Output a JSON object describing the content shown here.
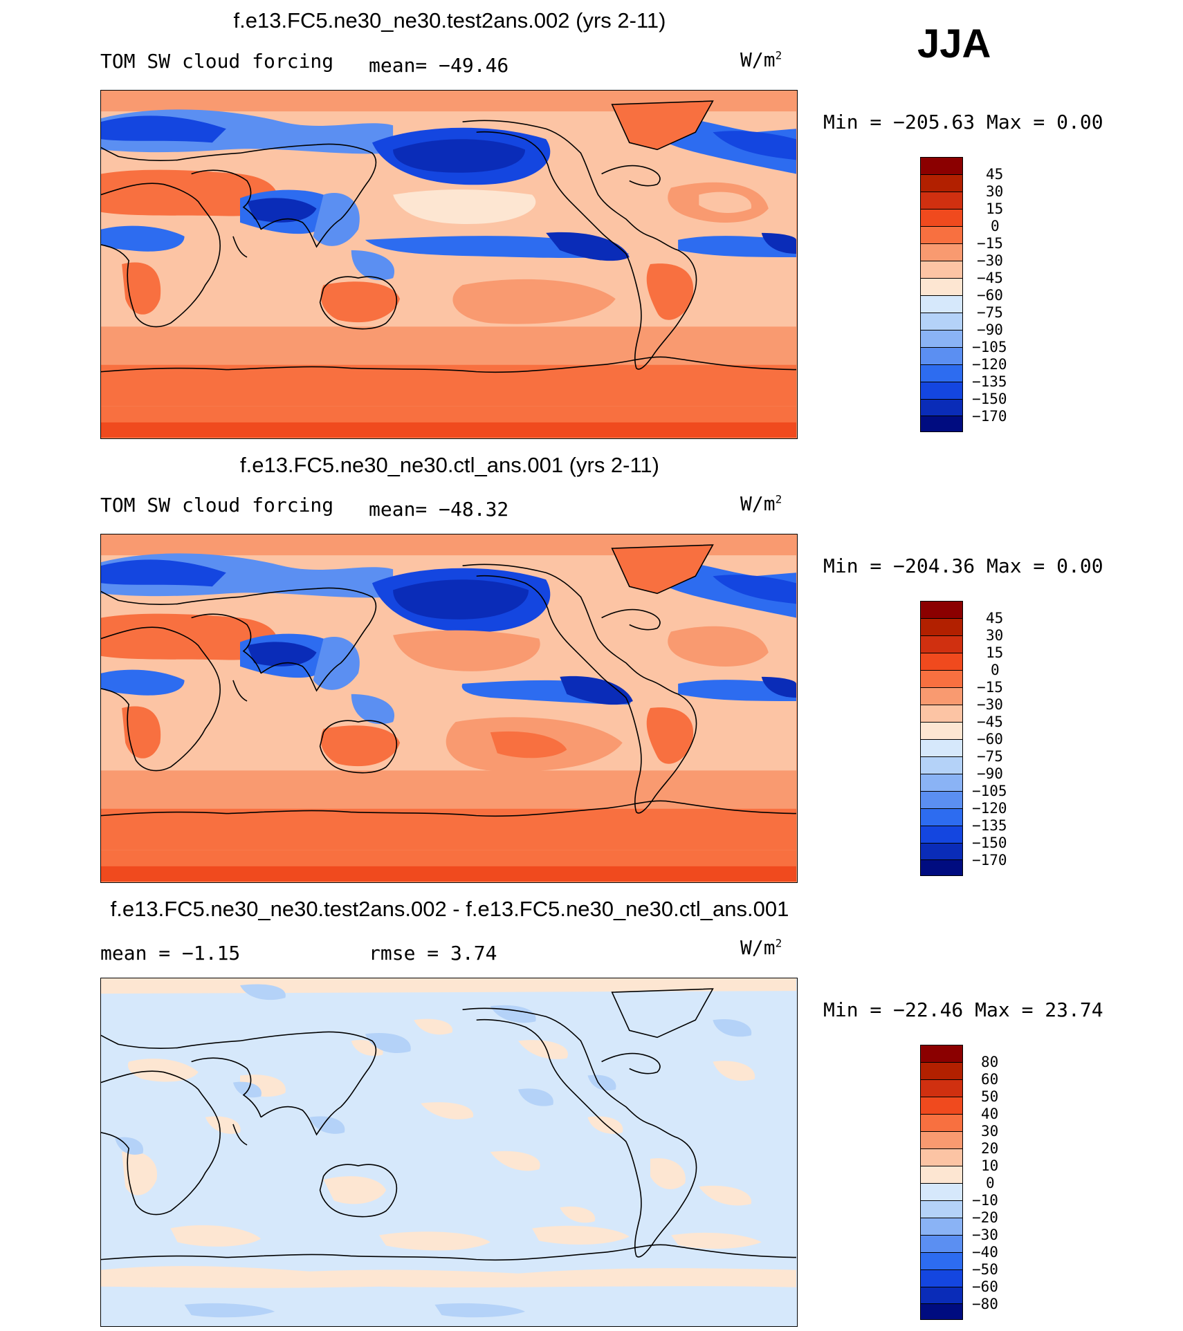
{
  "season": "JJA",
  "units": "W/m",
  "units_sup": "2",
  "panels": [
    {
      "title": "f.e13.FC5.ne30_ne30.test2ans.002 (yrs 2-11)",
      "left_label": "TOM SW cloud forcing",
      "stat": "mean= −49.46",
      "minmax": "Min = −205.63 Max =    0.00"
    },
    {
      "title": "f.e13.FC5.ne30_ne30.ctl_ans.001 (yrs 2-11)",
      "left_label": "TOM SW cloud forcing",
      "stat": "mean= −48.32",
      "minmax": "Min = −204.36 Max =    0.00"
    },
    {
      "title": "f.e13.FC5.ne30_ne30.test2ans.002 - f.e13.FC5.ne30_ne30.ctl_ans.001",
      "left_label": "mean =  −1.15",
      "stat": "rmse =    3.74",
      "minmax": "Min = −22.46 Max =  23.74"
    }
  ],
  "chart_data": [
    {
      "type": "heatmap",
      "title": "f.e13.FC5.ne30_ne30.test2ans.002 (yrs 2-11)",
      "variable": "TOM SW cloud forcing",
      "units": "W/m2",
      "mean": -49.46,
      "min": -205.63,
      "max": 0.0,
      "colorbar_levels": [
        "45",
        "30",
        "15",
        "0",
        "−15",
        "−30",
        "−45",
        "−60",
        "−75",
        "−90",
        "−105",
        "−120",
        "−135",
        "−150",
        "−170"
      ]
    },
    {
      "type": "heatmap",
      "title": "f.e13.FC5.ne30_ne30.ctl_ans.001 (yrs 2-11)",
      "variable": "TOM SW cloud forcing",
      "units": "W/m2",
      "mean": -48.32,
      "min": -204.36,
      "max": 0.0,
      "colorbar_levels": [
        "45",
        "30",
        "15",
        "0",
        "−15",
        "−30",
        "−45",
        "−60",
        "−75",
        "−90",
        "−105",
        "−120",
        "−135",
        "−150",
        "−170"
      ]
    },
    {
      "type": "heatmap",
      "title": "f.e13.FC5.ne30_ne30.test2ans.002 - f.e13.FC5.ne30_ne30.ctl_ans.001",
      "units": "W/m2",
      "mean": -1.15,
      "rmse": 3.74,
      "min": -22.46,
      "max": 23.74,
      "colorbar_levels": [
        "80",
        "60",
        "50",
        "40",
        "30",
        "20",
        "10",
        "0",
        "−10",
        "−20",
        "−30",
        "−40",
        "−50",
        "−60",
        "−80"
      ]
    }
  ],
  "colors": {
    "scale": [
      "#8b0000",
      "#b22000",
      "#d03010",
      "#f04a1e",
      "#f87040",
      "#f99a70",
      "#fcc4a4",
      "#fde6d2",
      "#d6e8fb",
      "#b4d2f8",
      "#8ab3f5",
      "#5b8ff2",
      "#2d6cf0",
      "#1446e0",
      "#0a2cb8",
      "#000c80"
    ]
  }
}
